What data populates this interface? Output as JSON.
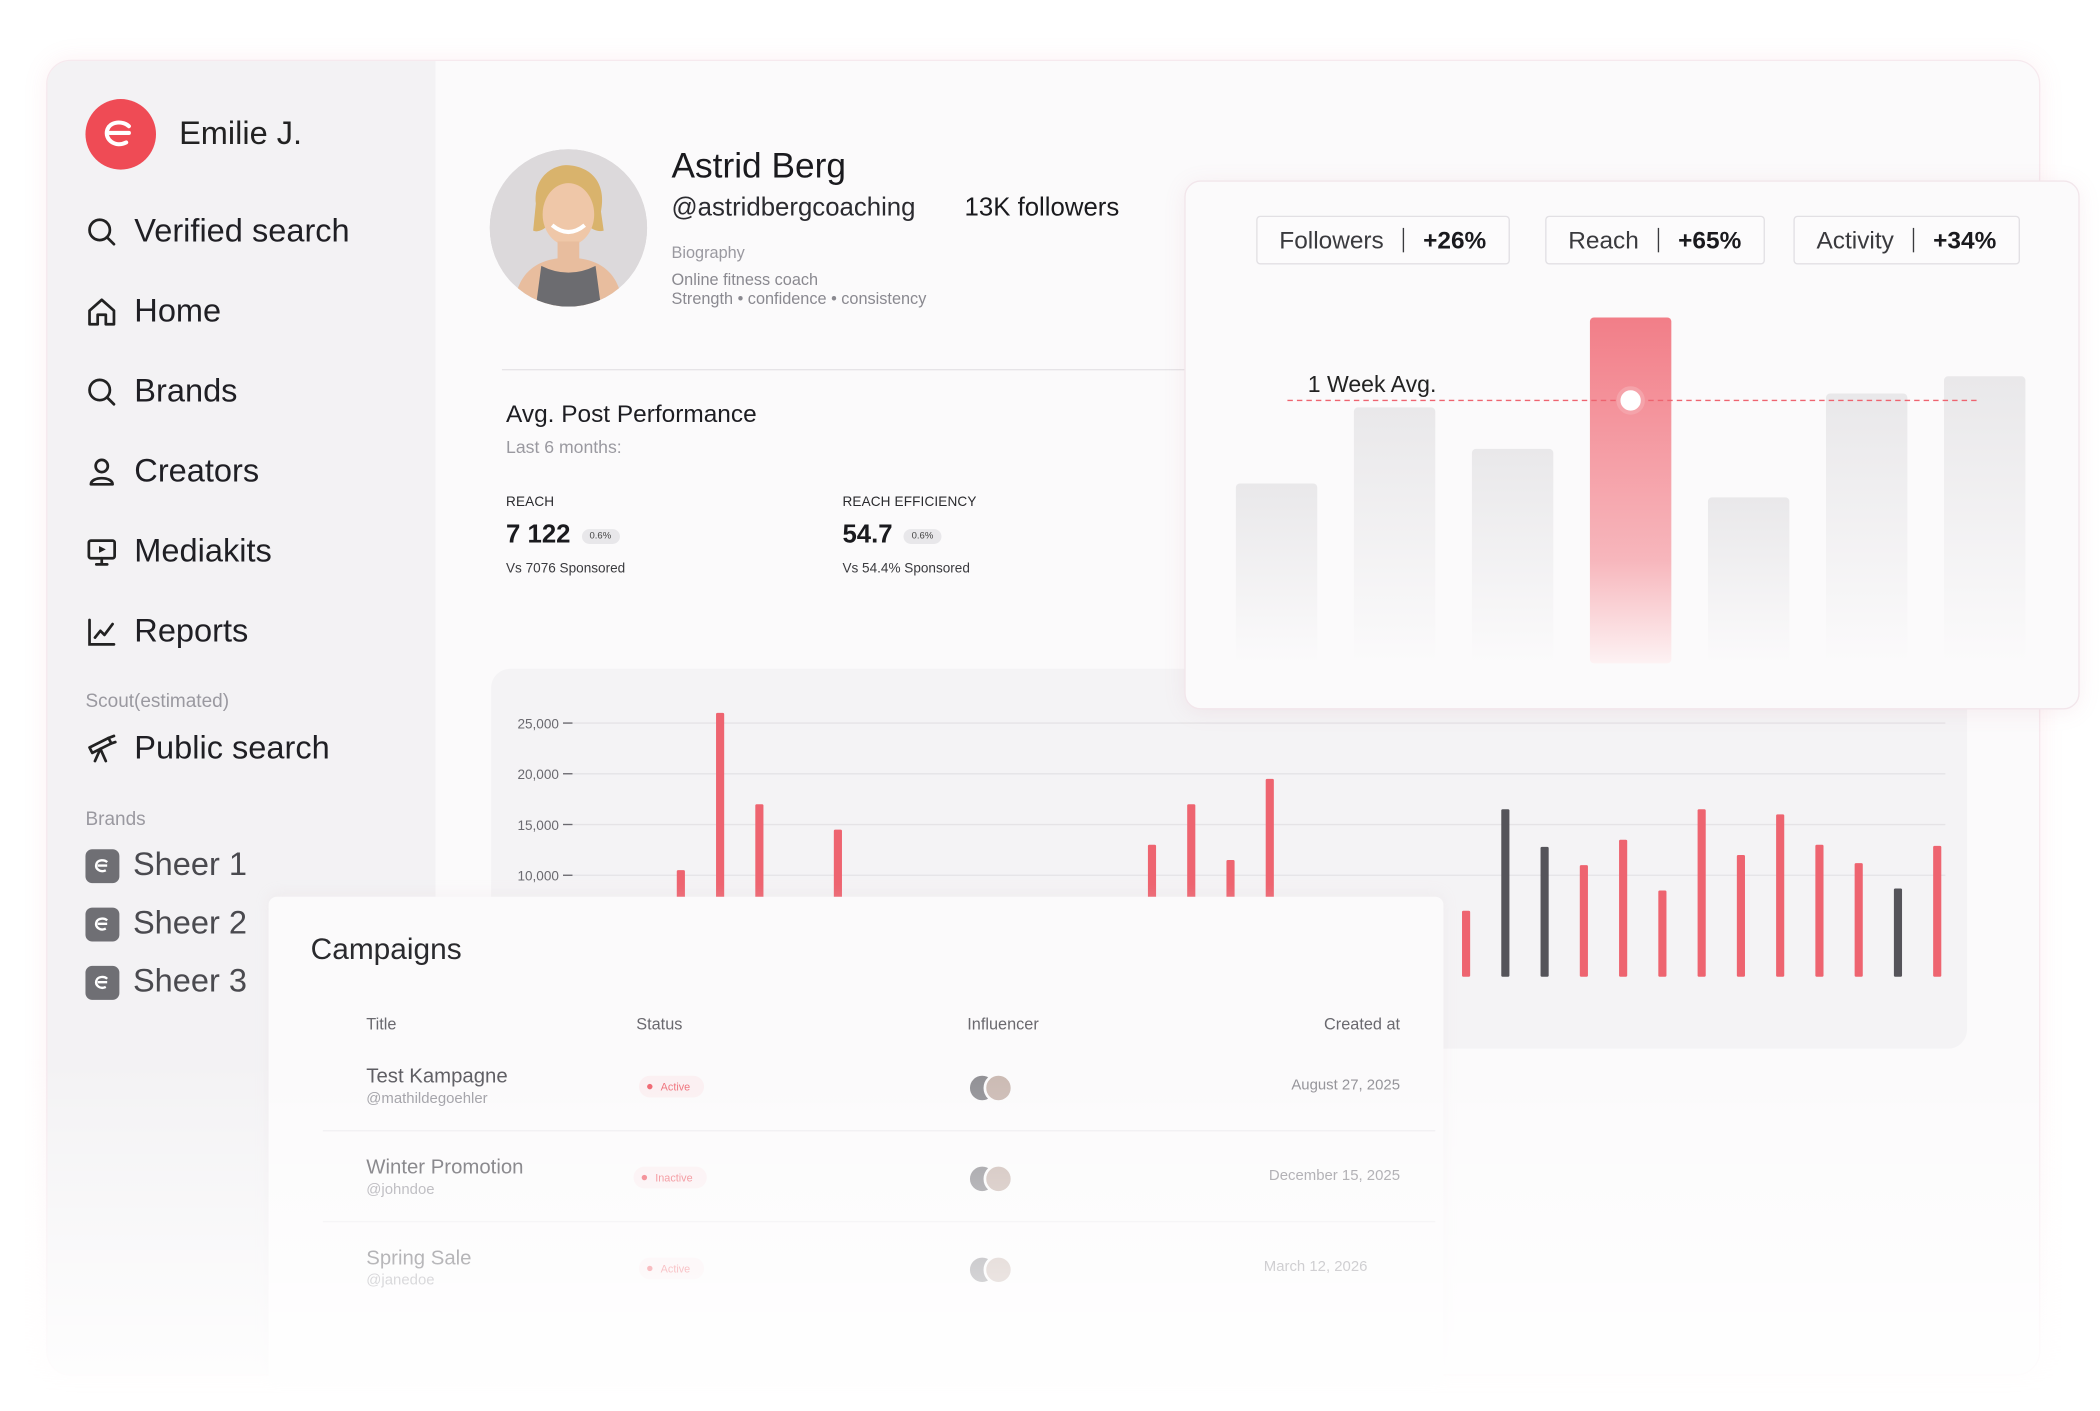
{
  "user": {
    "name": "Emilie J."
  },
  "nav": [
    {
      "label": "Verified search",
      "icon": "search-icon"
    },
    {
      "label": "Home",
      "icon": "home-icon"
    },
    {
      "label": "Brands",
      "icon": "search-icon"
    },
    {
      "label": "Creators",
      "icon": "user-icon"
    },
    {
      "label": "Mediakits",
      "icon": "presentation-icon"
    },
    {
      "label": "Reports",
      "icon": "line-chart-icon"
    }
  ],
  "scout": {
    "section_label": "Scout(estimated)",
    "public_search": "Public search"
  },
  "brands": {
    "section_label": "Brands",
    "items": [
      "Sheer 1",
      "Sheer 2",
      "Sheer 3"
    ]
  },
  "profile": {
    "name": "Astrid Berg",
    "handle": "@astridbergcoaching",
    "followers": "13K followers",
    "bio_label": "Biography",
    "bio_line1": "Online fitness coach",
    "bio_line2": "Strength • confidence • consistency"
  },
  "performance": {
    "title": "Avg. Post Performance",
    "subtitle": "Last 6 months:",
    "metrics": [
      {
        "label": "REACH",
        "value": "7 122",
        "badge": "0.6%",
        "compare": "Vs 7076 Sponsored"
      },
      {
        "label": "REACH EFFICIENCY",
        "value": "54.7",
        "badge": "0.6%",
        "compare": "Vs 54.4% Sponsored"
      }
    ]
  },
  "stats": {
    "pills": [
      {
        "label": "Followers",
        "value": "+26%"
      },
      {
        "label": "Reach",
        "value": "+65%"
      },
      {
        "label": "Activity",
        "value": "+34%"
      }
    ],
    "avg_label": "1 Week Avg.",
    "weekly_bars": [
      0.52,
      0.74,
      0.62,
      1.0,
      0.48,
      0.78,
      0.83
    ],
    "highlight_index": 3,
    "avg_level": 0.76
  },
  "colors": {
    "accent": "#ef4b55",
    "bar_red": "#ee6470",
    "bar_dark": "#55545a"
  },
  "chart_data": {
    "type": "bar",
    "y_ticks": [
      "25,000",
      "20,000",
      "15,000",
      "10,000"
    ],
    "ylim": [
      0,
      27000
    ],
    "values": [
      {
        "v": 6500,
        "c": "red"
      },
      {
        "v": 5000,
        "c": "red"
      },
      {
        "v": 10500,
        "c": "red"
      },
      {
        "v": 26000,
        "c": "red"
      },
      {
        "v": 17000,
        "c": "red"
      },
      {
        "v": 4500,
        "c": "dark"
      },
      {
        "v": 14500,
        "c": "red"
      },
      {
        "v": 0,
        "c": "none"
      },
      {
        "v": 0,
        "c": "none"
      },
      {
        "v": 0,
        "c": "none"
      },
      {
        "v": 0,
        "c": "none"
      },
      {
        "v": 0,
        "c": "none"
      },
      {
        "v": 0,
        "c": "none"
      },
      {
        "v": 0,
        "c": "none"
      },
      {
        "v": 13000,
        "c": "red"
      },
      {
        "v": 17000,
        "c": "red"
      },
      {
        "v": 11500,
        "c": "red"
      },
      {
        "v": 19500,
        "c": "red"
      },
      {
        "v": 1000,
        "c": "red"
      },
      {
        "v": 1500,
        "c": "red"
      },
      {
        "v": 0,
        "c": "none"
      },
      {
        "v": 1500,
        "c": "red"
      },
      {
        "v": 6500,
        "c": "red"
      },
      {
        "v": 16500,
        "c": "dark"
      },
      {
        "v": 12800,
        "c": "dark"
      },
      {
        "v": 11000,
        "c": "red"
      },
      {
        "v": 13500,
        "c": "red"
      },
      {
        "v": 8500,
        "c": "red"
      },
      {
        "v": 16500,
        "c": "red"
      },
      {
        "v": 12000,
        "c": "red"
      },
      {
        "v": 16000,
        "c": "red"
      },
      {
        "v": 13000,
        "c": "red"
      },
      {
        "v": 11200,
        "c": "red"
      },
      {
        "v": 8700,
        "c": "dark"
      },
      {
        "v": 12900,
        "c": "red"
      }
    ]
  },
  "campaigns": {
    "title": "Campaigns",
    "columns": {
      "title": "Title",
      "status": "Status",
      "influencer": "Influencer",
      "created": "Created at"
    },
    "rows": [
      {
        "name": "Test Kampagne",
        "handle": "@mathildegoehler",
        "status": "Active",
        "date": "August 27, 2025"
      },
      {
        "name": "Winter Promotion",
        "handle": "@johndoe",
        "status": "Inactive",
        "date": "December 15, 2025"
      },
      {
        "name": "Spring Sale",
        "handle": "@janedoe",
        "status": "Active",
        "date": "March 12, 2026"
      }
    ]
  }
}
